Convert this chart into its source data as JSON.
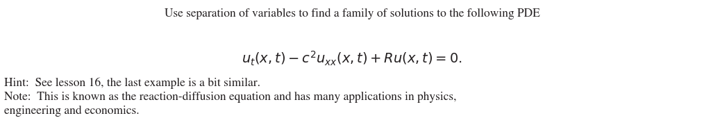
{
  "title": "Use separation of variables to find a family of solutions to the following PDE",
  "equation": "$u_t(x,t) - c^2u_{xx}(x,t) + Ru(x,t) = 0.$",
  "hint_line": "Hint:  See lesson 16, the last example is a bit similar.",
  "note_line1": "Note:  This is known as the reaction-diffusion equation and has many applications in physics,",
  "note_line2": "engineering and economics.",
  "background_color": "#ffffff",
  "text_color": "#231f20",
  "title_fontsize": 12.5,
  "equation_fontsize": 14,
  "body_fontsize": 12.5,
  "fig_width": 10.14,
  "fig_height": 1.8,
  "dpi": 100
}
